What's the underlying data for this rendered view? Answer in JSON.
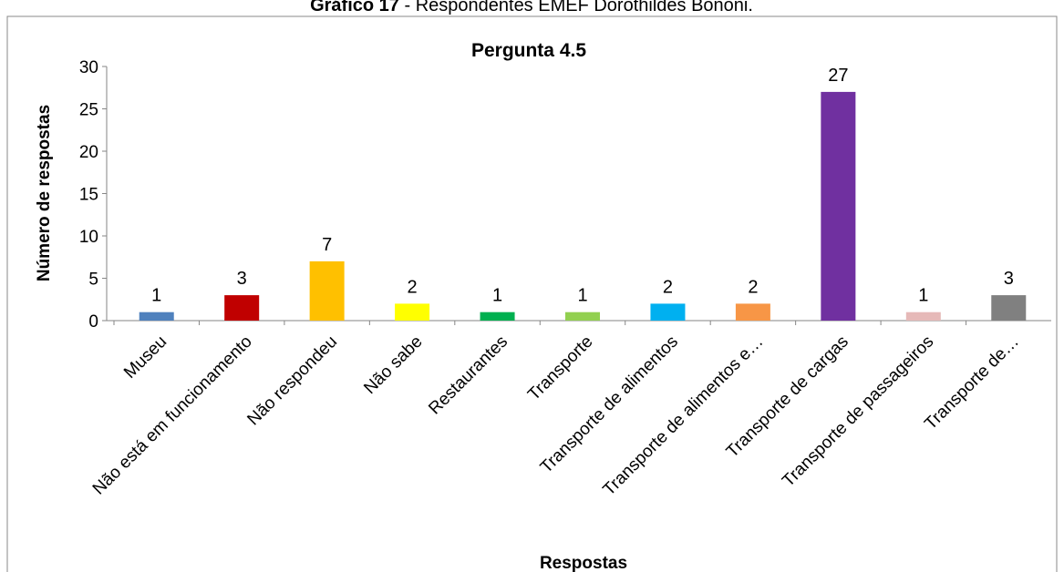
{
  "chart_data": {
    "type": "bar",
    "caption_label": "Gráfico 17",
    "caption_text": "- Respondentes EMEF Dorothildes Bononi.",
    "title": "Pergunta 4.5",
    "xlabel": "Respostas",
    "ylabel": "Número de respostas",
    "categories": [
      "Museu",
      "Não está em funcionamento",
      "Não respondeu",
      "Não sabe",
      "Restaurantes",
      "Transporte",
      "Transporte de alimentos",
      "Transporte de alimentos e…",
      "Transporte de cargas",
      "Transporte de passageiros",
      "Transporte de…"
    ],
    "values": [
      1,
      3,
      7,
      2,
      1,
      1,
      2,
      2,
      27,
      1,
      3
    ],
    "colors": [
      "#4f81bd",
      "#c00000",
      "#ffc000",
      "#ffff00",
      "#00b050",
      "#92d050",
      "#00b0f0",
      "#f79646",
      "#7030a0",
      "#e6b9b8",
      "#808080"
    ],
    "ylim": [
      0,
      30
    ],
    "yticks": [
      0,
      5,
      10,
      15,
      20,
      25,
      30
    ],
    "grid": false
  }
}
